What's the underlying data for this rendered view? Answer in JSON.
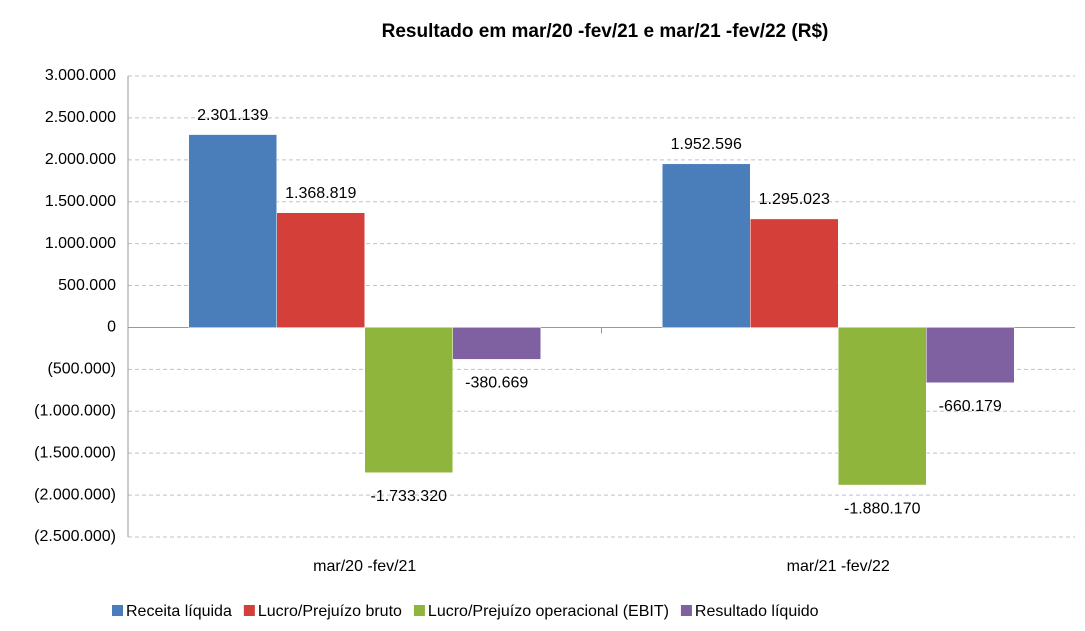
{
  "chart_data": {
    "type": "bar",
    "title": "Resultado em mar/20 -fev/21 e mar/21 -fev/22 (R$)",
    "categories": [
      "mar/20 -fev/21",
      "mar/21 -fev/22"
    ],
    "series": [
      {
        "name": "Receita líquida",
        "color": "#4a7ebb",
        "values": [
          2301139,
          1952596
        ],
        "value_labels": [
          "2.301.139",
          "1.952.596"
        ]
      },
      {
        "name": "Lucro/Prejuízo bruto",
        "color": "#d43f3a",
        "values": [
          1368819,
          1295023
        ],
        "value_labels": [
          "1.368.819",
          "1.295.023"
        ]
      },
      {
        "name": "Lucro/Prejuízo operacional (EBIT)",
        "color": "#8fb53c",
        "values": [
          -1733320,
          -1880170
        ],
        "value_labels": [
          "-1.733.320",
          "-1.880.170"
        ]
      },
      {
        "name": "Resultado líquido",
        "color": "#7f60a0",
        "values": [
          -380669,
          -660179
        ],
        "value_labels": [
          "-380.669",
          "-660.179"
        ]
      }
    ],
    "ylim": [
      -2500000,
      3000000
    ],
    "yticks": [
      {
        "value": -2500000,
        "label": "(2.500.000)"
      },
      {
        "value": -2000000,
        "label": "(2.000.000)"
      },
      {
        "value": -1500000,
        "label": "(1.500.000)"
      },
      {
        "value": -1000000,
        "label": "(1.000.000)"
      },
      {
        "value": -500000,
        "label": "(500.000)"
      },
      0,
      {
        "value": 500000,
        "label": "500.000"
      },
      {
        "value": 1000000,
        "label": "1.000.000"
      },
      {
        "value": 1500000,
        "label": "1.500.000"
      },
      {
        "value": 2000000,
        "label": "2.000.000"
      },
      {
        "value": 2500000,
        "label": "2.500.000"
      },
      {
        "value": 3000000,
        "label": "3.000.000"
      }
    ],
    "grid": true,
    "legend": "bottom"
  }
}
